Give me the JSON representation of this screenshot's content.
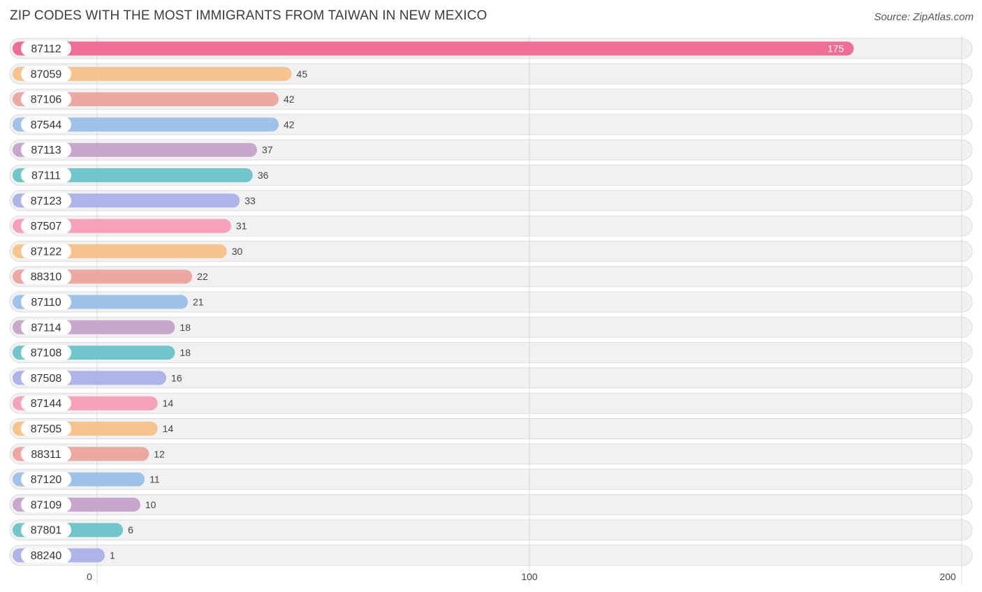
{
  "header": {
    "title": "ZIP CODES WITH THE MOST IMMIGRANTS FROM TAIWAN IN NEW MEXICO",
    "source": "Source: ZipAtlas.com"
  },
  "chart_data": {
    "type": "bar",
    "orientation": "horizontal",
    "title": "ZIP CODES WITH THE MOST IMMIGRANTS FROM TAIWAN IN NEW MEXICO",
    "xlabel": "",
    "ylabel": "",
    "xlim": [
      0,
      200
    ],
    "ticks": [
      0,
      100,
      200
    ],
    "grid": true,
    "categories": [
      "87112",
      "87059",
      "87106",
      "87544",
      "87113",
      "87111",
      "87123",
      "87507",
      "87122",
      "88310",
      "87110",
      "87114",
      "87108",
      "87508",
      "87144",
      "87505",
      "88311",
      "87120",
      "87109",
      "87801",
      "88240"
    ],
    "values": [
      175,
      45,
      42,
      42,
      37,
      36,
      33,
      31,
      30,
      22,
      21,
      18,
      18,
      16,
      14,
      14,
      12,
      11,
      10,
      6,
      1
    ],
    "colors": [
      "#f06e96",
      "#f9c38e",
      "#eea8a2",
      "#9fc2ea",
      "#c7a7cb",
      "#70c6ca",
      "#afb4e8",
      "#f7a1bb",
      "#f9c38e",
      "#eea8a2",
      "#9fc2ea",
      "#c7a7cb",
      "#70c6ca",
      "#afb4e8",
      "#f7a1bb",
      "#f9c38e",
      "#eea8a2",
      "#9fc2ea",
      "#c7a7cb",
      "#70c6ca",
      "#afb4e8"
    ]
  }
}
